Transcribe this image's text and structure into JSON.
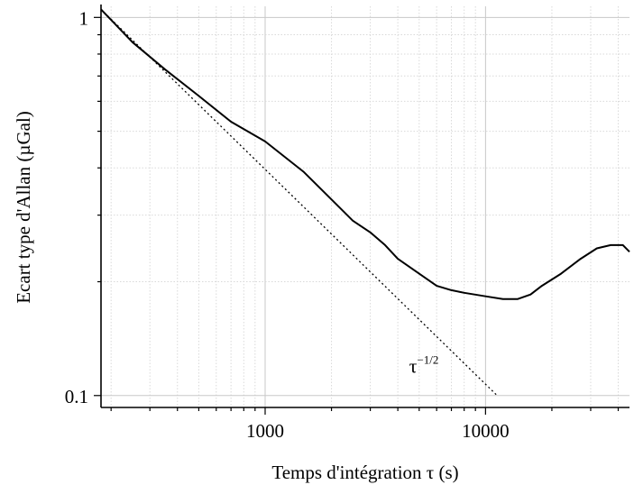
{
  "chart_data": {
    "type": "line",
    "title": "",
    "xlabel": "Temps d'intégration τ (s)",
    "ylabel": "Ecart type d'Allan (µGal)",
    "xscale": "log",
    "yscale": "log",
    "xlim": [
      180,
      45000
    ],
    "ylim": [
      0.093,
      1.07
    ],
    "grid": true,
    "x_ticks": [
      {
        "value": 1000,
        "label": "1000"
      },
      {
        "value": 10000,
        "label": "10000"
      }
    ],
    "y_ticks": [
      {
        "value": 1,
        "label": "1"
      },
      {
        "value": 0.1,
        "label": "0.1"
      }
    ],
    "series": [
      {
        "style": "solid",
        "x": [
          180,
          250,
          350,
          500,
          700,
          1000,
          1500,
          2000,
          2500,
          3000,
          3500,
          4000,
          5000,
          6000,
          7000,
          8000,
          10000,
          12000,
          14000,
          16000,
          18000,
          22000,
          27000,
          32000,
          37000,
          42000,
          45000
        ],
        "y": [
          1.05,
          0.86,
          0.73,
          0.62,
          0.53,
          0.47,
          0.39,
          0.33,
          0.29,
          0.27,
          0.25,
          0.23,
          0.21,
          0.195,
          0.19,
          0.187,
          0.183,
          0.18,
          0.18,
          0.185,
          0.195,
          0.21,
          0.23,
          0.245,
          0.25,
          0.25,
          0.24
        ]
      },
      {
        "style": "dotted",
        "x": [
          180,
          11300
        ],
        "y": [
          1.05,
          0.1
        ]
      }
    ],
    "annotations": [
      {
        "text_base": "τ",
        "text_sup": "−1/2",
        "x": 4500,
        "y": 0.115
      }
    ]
  }
}
